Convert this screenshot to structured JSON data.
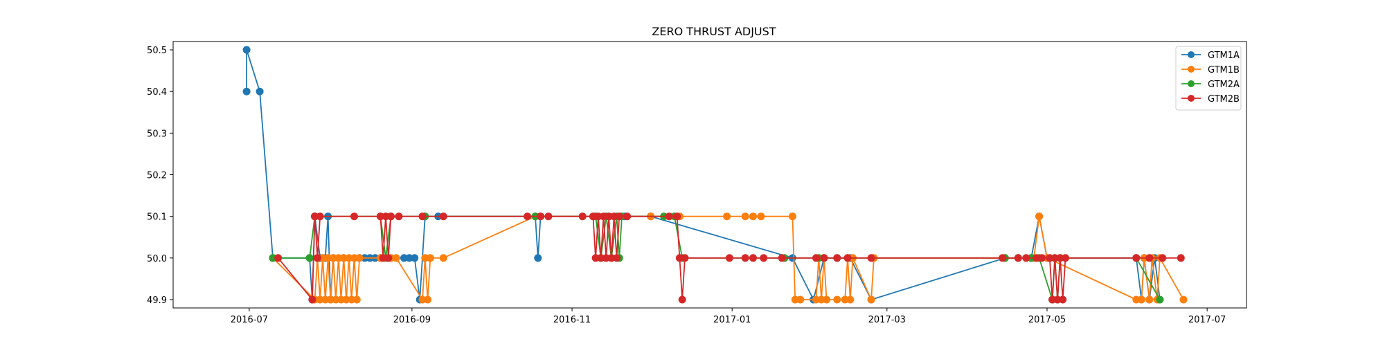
{
  "chart_data": {
    "type": "line",
    "title": "ZERO THRUST ADJUST",
    "xlabel": "",
    "ylabel": "",
    "xlim": [
      "2016-06-02",
      "2017-07-16"
    ],
    "ylim": [
      49.88,
      50.52
    ],
    "x_ticks": [
      "2016-07",
      "2016-09",
      "2016-11",
      "2017-01",
      "2017-03",
      "2017-05",
      "2017-07"
    ],
    "y_ticks": [
      49.9,
      50.0,
      50.1,
      50.2,
      50.3,
      50.4,
      50.5
    ],
    "grid": false,
    "legend": {
      "position": "top-right"
    },
    "markers": true,
    "series": [
      {
        "name": "GTM1A",
        "color": "#1f77b4",
        "points": [
          [
            "2016-06-30",
            50.4
          ],
          [
            "2016-06-30",
            50.5
          ],
          [
            "2016-07-05",
            50.4
          ],
          [
            "2016-07-10",
            50.0
          ],
          [
            "2016-07-24",
            50.0
          ],
          [
            "2016-07-25",
            49.9
          ],
          [
            "2016-07-26",
            50.1
          ],
          [
            "2016-07-28",
            50.0
          ],
          [
            "2016-07-30",
            50.0
          ],
          [
            "2016-07-31",
            50.1
          ],
          [
            "2016-08-01",
            49.9
          ],
          [
            "2016-08-02",
            50.0
          ],
          [
            "2016-08-06",
            50.0
          ],
          [
            "2016-08-12",
            50.0
          ],
          [
            "2016-08-14",
            50.0
          ],
          [
            "2016-08-16",
            50.0
          ],
          [
            "2016-08-18",
            50.0
          ],
          [
            "2016-08-20",
            50.0
          ],
          [
            "2016-08-23",
            50.0
          ],
          [
            "2016-08-29",
            50.0
          ],
          [
            "2016-08-31",
            50.0
          ],
          [
            "2016-09-02",
            50.0
          ],
          [
            "2016-09-04",
            49.9
          ],
          [
            "2016-09-06",
            50.1
          ],
          [
            "2016-09-11",
            50.1
          ],
          [
            "2016-10-18",
            50.1
          ],
          [
            "2016-10-19",
            50.0
          ],
          [
            "2016-10-20",
            50.1
          ],
          [
            "2016-11-10",
            50.1
          ],
          [
            "2016-11-15",
            50.1
          ],
          [
            "2016-11-21",
            50.1
          ],
          [
            "2016-12-01",
            50.1
          ],
          [
            "2017-01-24",
            50.0
          ],
          [
            "2017-02-01",
            49.9
          ],
          [
            "2017-02-05",
            50.0
          ],
          [
            "2017-02-10",
            50.0
          ],
          [
            "2017-02-15",
            50.0
          ],
          [
            "2017-02-23",
            49.9
          ],
          [
            "2017-04-15",
            50.0
          ],
          [
            "2017-04-25",
            50.0
          ],
          [
            "2017-04-28",
            50.1
          ],
          [
            "2017-05-01",
            50.0
          ],
          [
            "2017-06-04",
            50.0
          ],
          [
            "2017-06-06",
            49.9
          ],
          [
            "2017-06-07",
            50.0
          ],
          [
            "2017-06-09",
            49.9
          ],
          [
            "2017-06-11",
            50.0
          ],
          [
            "2017-06-13",
            49.9
          ]
        ]
      },
      {
        "name": "GTM1B",
        "color": "#ff7f0e",
        "points": [
          [
            "2016-07-10",
            50.0
          ],
          [
            "2016-07-26",
            49.9
          ],
          [
            "2016-07-27",
            50.0
          ],
          [
            "2016-07-28",
            49.9
          ],
          [
            "2016-07-29",
            50.0
          ],
          [
            "2016-07-30",
            49.9
          ],
          [
            "2016-07-31",
            50.0
          ],
          [
            "2016-08-01",
            49.9
          ],
          [
            "2016-08-02",
            50.0
          ],
          [
            "2016-08-03",
            49.9
          ],
          [
            "2016-08-04",
            50.0
          ],
          [
            "2016-08-05",
            49.9
          ],
          [
            "2016-08-06",
            50.0
          ],
          [
            "2016-08-07",
            49.9
          ],
          [
            "2016-08-08",
            50.0
          ],
          [
            "2016-08-09",
            49.9
          ],
          [
            "2016-08-10",
            50.0
          ],
          [
            "2016-08-11",
            49.9
          ],
          [
            "2016-08-12",
            50.0
          ],
          [
            "2016-08-20",
            50.0
          ],
          [
            "2016-08-24",
            50.0
          ],
          [
            "2016-08-26",
            50.0
          ],
          [
            "2016-09-05",
            49.9
          ],
          [
            "2016-09-06",
            50.0
          ],
          [
            "2016-09-07",
            49.9
          ],
          [
            "2016-09-08",
            50.0
          ],
          [
            "2016-09-13",
            50.0
          ],
          [
            "2016-10-18",
            50.1
          ],
          [
            "2016-11-10",
            50.1
          ],
          [
            "2016-12-01",
            50.1
          ],
          [
            "2016-12-12",
            50.1
          ],
          [
            "2016-12-30",
            50.1
          ],
          [
            "2017-01-06",
            50.1
          ],
          [
            "2017-01-09",
            50.1
          ],
          [
            "2017-01-12",
            50.1
          ],
          [
            "2017-01-24",
            50.1
          ],
          [
            "2017-01-25",
            49.9
          ],
          [
            "2017-01-27",
            49.9
          ],
          [
            "2017-02-02",
            49.9
          ],
          [
            "2017-02-03",
            50.0
          ],
          [
            "2017-02-04",
            49.9
          ],
          [
            "2017-02-05",
            50.0
          ],
          [
            "2017-02-06",
            49.9
          ],
          [
            "2017-02-10",
            49.9
          ],
          [
            "2017-02-13",
            49.9
          ],
          [
            "2017-02-14",
            50.0
          ],
          [
            "2017-02-15",
            49.9
          ],
          [
            "2017-02-16",
            50.0
          ],
          [
            "2017-02-23",
            49.9
          ],
          [
            "2017-02-24",
            50.0
          ],
          [
            "2017-04-15",
            50.0
          ],
          [
            "2017-04-26",
            50.0
          ],
          [
            "2017-04-28",
            50.1
          ],
          [
            "2017-05-01",
            50.0
          ],
          [
            "2017-06-04",
            49.9
          ],
          [
            "2017-06-06",
            49.9
          ],
          [
            "2017-06-07",
            50.0
          ],
          [
            "2017-06-09",
            49.9
          ],
          [
            "2017-06-10",
            50.0
          ],
          [
            "2017-06-12",
            49.9
          ],
          [
            "2017-06-13",
            50.0
          ],
          [
            "2017-06-22",
            49.9
          ]
        ]
      },
      {
        "name": "GTM2A",
        "color": "#2ca02c",
        "points": [
          [
            "2016-07-10",
            50.0
          ],
          [
            "2016-07-24",
            50.0
          ],
          [
            "2016-07-26",
            50.1
          ],
          [
            "2016-08-20",
            50.1
          ],
          [
            "2016-08-22",
            50.0
          ],
          [
            "2016-08-24",
            50.1
          ],
          [
            "2016-09-06",
            50.1
          ],
          [
            "2016-10-18",
            50.1
          ],
          [
            "2016-11-10",
            50.1
          ],
          [
            "2016-11-12",
            50.0
          ],
          [
            "2016-11-14",
            50.1
          ],
          [
            "2016-11-16",
            50.0
          ],
          [
            "2016-11-18",
            50.1
          ],
          [
            "2016-11-19",
            50.0
          ],
          [
            "2016-11-20",
            50.1
          ],
          [
            "2016-12-06",
            50.1
          ],
          [
            "2016-12-10",
            50.1
          ],
          [
            "2016-12-13",
            50.0
          ],
          [
            "2017-01-21",
            50.0
          ],
          [
            "2017-02-03",
            50.0
          ],
          [
            "2017-04-15",
            50.0
          ],
          [
            "2017-04-20",
            50.0
          ],
          [
            "2017-04-25",
            50.0
          ],
          [
            "2017-04-28",
            50.0
          ],
          [
            "2017-05-03",
            49.9
          ],
          [
            "2017-05-04",
            50.0
          ],
          [
            "2017-05-05",
            49.9
          ],
          [
            "2017-05-06",
            50.0
          ],
          [
            "2017-06-04",
            50.0
          ],
          [
            "2017-06-13",
            49.9
          ]
        ]
      },
      {
        "name": "GTM2B",
        "color": "#d62728",
        "points": [
          [
            "2016-07-12",
            50.0
          ],
          [
            "2016-07-25",
            49.9
          ],
          [
            "2016-07-26",
            50.1
          ],
          [
            "2016-07-27",
            50.0
          ],
          [
            "2016-07-28",
            50.1
          ],
          [
            "2016-08-10",
            50.1
          ],
          [
            "2016-08-20",
            50.1
          ],
          [
            "2016-08-21",
            50.0
          ],
          [
            "2016-08-22",
            50.1
          ],
          [
            "2016-08-23",
            50.0
          ],
          [
            "2016-08-24",
            50.1
          ],
          [
            "2016-08-27",
            50.1
          ],
          [
            "2016-09-05",
            50.1
          ],
          [
            "2016-09-13",
            50.1
          ],
          [
            "2016-10-15",
            50.1
          ],
          [
            "2016-10-20",
            50.1
          ],
          [
            "2016-10-23",
            50.1
          ],
          [
            "2016-11-05",
            50.1
          ],
          [
            "2016-11-09",
            50.1
          ],
          [
            "2016-11-10",
            50.0
          ],
          [
            "2016-11-11",
            50.1
          ],
          [
            "2016-11-12",
            50.0
          ],
          [
            "2016-11-13",
            50.1
          ],
          [
            "2016-11-14",
            50.0
          ],
          [
            "2016-11-15",
            50.1
          ],
          [
            "2016-11-16",
            50.0
          ],
          [
            "2016-11-17",
            50.1
          ],
          [
            "2016-11-18",
            50.0
          ],
          [
            "2016-11-19",
            50.1
          ],
          [
            "2016-11-22",
            50.1
          ],
          [
            "2016-12-08",
            50.1
          ],
          [
            "2016-12-11",
            50.1
          ],
          [
            "2016-12-12",
            50.0
          ],
          [
            "2016-12-13",
            49.9
          ],
          [
            "2016-12-14",
            50.0
          ],
          [
            "2016-12-31",
            50.0
          ],
          [
            "2017-01-06",
            50.0
          ],
          [
            "2017-01-09",
            50.0
          ],
          [
            "2017-01-13",
            50.0
          ],
          [
            "2017-01-20",
            50.0
          ],
          [
            "2017-02-02",
            50.0
          ],
          [
            "2017-02-05",
            50.0
          ],
          [
            "2017-02-10",
            50.0
          ],
          [
            "2017-02-14",
            50.0
          ],
          [
            "2017-02-23",
            50.0
          ],
          [
            "2017-04-14",
            50.0
          ],
          [
            "2017-04-20",
            50.0
          ],
          [
            "2017-04-23",
            50.0
          ],
          [
            "2017-04-27",
            50.0
          ],
          [
            "2017-04-29",
            50.0
          ],
          [
            "2017-05-02",
            50.0
          ],
          [
            "2017-05-03",
            49.9
          ],
          [
            "2017-05-04",
            50.0
          ],
          [
            "2017-05-05",
            49.9
          ],
          [
            "2017-05-06",
            50.0
          ],
          [
            "2017-05-07",
            49.9
          ],
          [
            "2017-05-08",
            50.0
          ],
          [
            "2017-06-04",
            50.0
          ],
          [
            "2017-06-09",
            50.0
          ],
          [
            "2017-06-14",
            50.0
          ],
          [
            "2017-06-21",
            50.0
          ]
        ]
      }
    ]
  }
}
